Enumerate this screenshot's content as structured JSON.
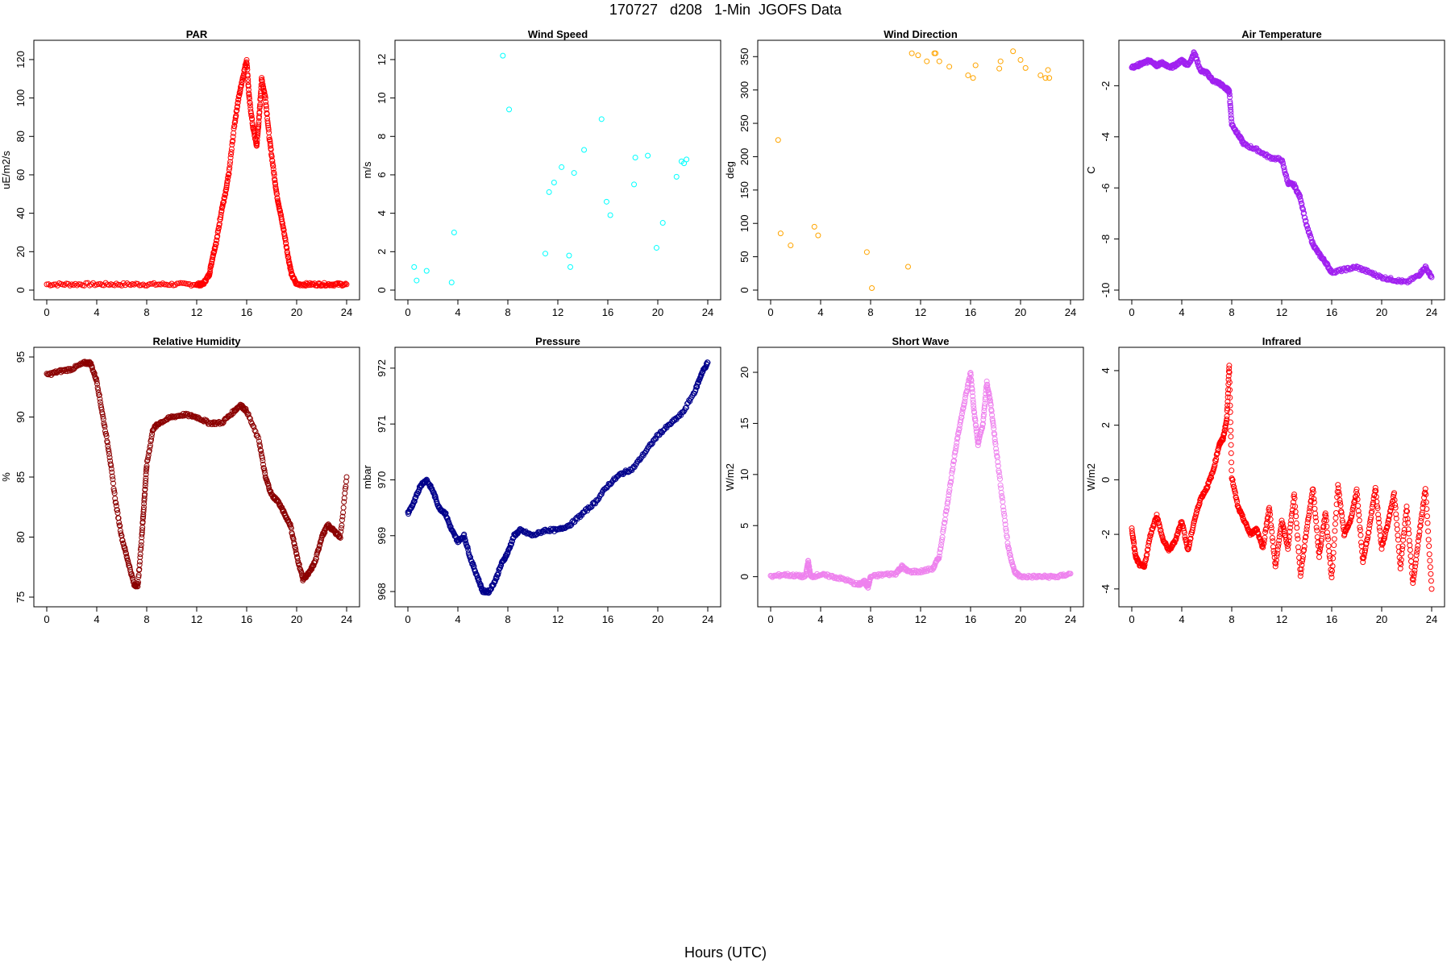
{
  "page": {
    "title": "170727   d208   1-Min  JGOFS Data",
    "xlabel": "Hours (UTC)"
  },
  "chart_data": [
    {
      "type": "scatter",
      "title": "PAR",
      "ylabel": "uE/m2/s",
      "xlim": [
        0,
        24
      ],
      "ylim": [
        0,
        125
      ],
      "xticks": [
        0,
        4,
        8,
        12,
        16,
        20,
        24
      ],
      "yticks": [
        0,
        20,
        40,
        60,
        80,
        100,
        120
      ],
      "ytick_rotation": "vertical",
      "color": "#FF0000",
      "marker": "hollow-circle",
      "series": [
        {
          "x": [
            0,
            2,
            4,
            6,
            8,
            10,
            12,
            12.5,
            13,
            13.3,
            13.6,
            14,
            14.3,
            14.6,
            15,
            15.3,
            15.6,
            16,
            16.2,
            16.5,
            16.8,
            17,
            17.2,
            17.5,
            17.8,
            18.1,
            18.4,
            18.7,
            19,
            19.3,
            19.6,
            20,
            21,
            22,
            23,
            24
          ],
          "y": [
            3,
            3,
            3,
            3,
            3,
            3,
            3,
            3,
            8,
            18,
            26,
            42,
            50,
            62,
            85,
            98,
            108,
            120,
            100,
            85,
            75,
            90,
            110,
            100,
            80,
            65,
            50,
            40,
            30,
            18,
            8,
            3,
            3,
            3,
            3,
            3
          ]
        }
      ]
    },
    {
      "type": "scatter",
      "title": "Wind Speed",
      "ylabel": "m/s",
      "xlim": [
        0,
        24
      ],
      "ylim": [
        0,
        12.5
      ],
      "xticks": [
        0,
        4,
        8,
        12,
        16,
        20,
        24
      ],
      "yticks": [
        0,
        2,
        4,
        6,
        8,
        10,
        12
      ],
      "ytick_rotation": "vertical",
      "color": "#00FFFF",
      "marker": "hollow-circle",
      "series": [
        {
          "x": [
            0.5,
            0.7,
            1.5,
            3.5,
            3.7,
            7.6,
            8.1,
            11.0,
            11.3,
            11.7,
            12.3,
            12.9,
            13.0,
            13.3,
            14.1,
            15.5,
            15.9,
            16.2,
            18.1,
            18.2,
            19.2,
            19.9,
            20.4,
            21.5,
            21.9,
            22.1,
            22.3
          ],
          "y": [
            1.2,
            0.5,
            1.0,
            0.4,
            3.0,
            12.2,
            9.4,
            1.9,
            5.1,
            5.6,
            6.4,
            1.8,
            1.2,
            6.1,
            7.3,
            8.9,
            4.6,
            3.9,
            5.5,
            6.9,
            7.0,
            2.2,
            3.5,
            5.9,
            6.7,
            6.6,
            6.8
          ]
        }
      ]
    },
    {
      "type": "scatter",
      "title": "Wind Direction",
      "ylabel": "deg",
      "xlim": [
        0,
        24
      ],
      "ylim": [
        0,
        360
      ],
      "xticks": [
        0,
        4,
        8,
        12,
        16,
        20,
        24
      ],
      "yticks": [
        0,
        50,
        100,
        150,
        200,
        250,
        300,
        350
      ],
      "ytick_rotation": "vertical",
      "color": "#FFA500",
      "marker": "hollow-circle",
      "series": [
        {
          "x": [
            0.6,
            0.8,
            1.6,
            3.5,
            3.8,
            7.7,
            8.1,
            11.0,
            11.3,
            11.8,
            12.5,
            13.1,
            13.2,
            13.5,
            14.3,
            15.8,
            16.2,
            16.4,
            18.3,
            18.4,
            19.4,
            20.0,
            20.4,
            21.6,
            22.0,
            22.2,
            22.3
          ],
          "y": [
            225,
            85,
            67,
            95,
            82,
            57,
            3,
            35,
            355,
            352,
            343,
            355,
            355,
            343,
            335,
            322,
            318,
            337,
            332,
            343,
            358,
            345,
            333,
            322,
            318,
            330,
            318
          ]
        }
      ]
    },
    {
      "type": "scatter",
      "title": "Air Temperature",
      "ylabel": "C",
      "xlim": [
        0,
        24
      ],
      "ylim": [
        -10,
        -0.6
      ],
      "xticks": [
        0,
        4,
        8,
        12,
        16,
        20,
        24
      ],
      "yticks": [
        -10,
        -8,
        -6,
        -4,
        -2
      ],
      "ytick_rotation": "vertical",
      "color": "#A020F0",
      "marker": "hollow-circle",
      "series": [
        {
          "x": [
            0,
            0.5,
            1,
            1.5,
            2,
            2.5,
            3,
            3.5,
            4,
            4.5,
            5,
            5.5,
            6,
            6.5,
            7,
            7.5,
            7.8,
            8,
            8.5,
            9,
            10,
            11,
            12,
            12.5,
            13,
            13.5,
            14,
            14.5,
            15,
            15.5,
            16,
            17,
            18,
            19,
            20,
            21,
            22,
            23,
            23.5,
            24
          ],
          "y": [
            -1.3,
            -1.2,
            -1.1,
            -1.0,
            -1.2,
            -1.1,
            -1.3,
            -1.2,
            -1.0,
            -1.2,
            -0.7,
            -1.4,
            -1.5,
            -1.8,
            -1.9,
            -2.1,
            -2.2,
            -3.5,
            -3.9,
            -4.3,
            -4.5,
            -4.8,
            -4.9,
            -5.8,
            -5.9,
            -6.4,
            -7.5,
            -8.2,
            -8.6,
            -8.9,
            -9.3,
            -9.2,
            -9.1,
            -9.3,
            -9.5,
            -9.6,
            -9.7,
            -9.4,
            -9.1,
            -9.5
          ]
        }
      ]
    },
    {
      "type": "scatter",
      "title": "Relative Humidity",
      "ylabel": "%",
      "xlim": [
        0,
        24
      ],
      "ylim": [
        75,
        95
      ],
      "xticks": [
        0,
        4,
        8,
        12,
        16,
        20,
        24
      ],
      "yticks": [
        75,
        80,
        85,
        90,
        95
      ],
      "ytick_rotation": "vertical",
      "color": "#8B0000",
      "marker": "hollow-circle",
      "series": [
        {
          "x": [
            0,
            1,
            2,
            3,
            3.5,
            4,
            4.5,
            5,
            5.5,
            6,
            6.5,
            7,
            7.3,
            7.6,
            7.8,
            8,
            8.5,
            9,
            10,
            11,
            12,
            13,
            14,
            15,
            15.5,
            16,
            17,
            17.5,
            18,
            18.5,
            19,
            19.5,
            20,
            20.5,
            21,
            21.5,
            22,
            22.5,
            23,
            23.5,
            24
          ],
          "y": [
            93.5,
            93.8,
            94.0,
            94.5,
            94.5,
            93.0,
            90.0,
            87.0,
            83.0,
            80.0,
            78.0,
            76.0,
            76.0,
            80.0,
            83.0,
            86.0,
            89.0,
            89.5,
            90.0,
            90.2,
            90.0,
            89.5,
            89.5,
            90.5,
            91.0,
            90.5,
            88.0,
            85.0,
            83.5,
            83.0,
            82.0,
            81.0,
            78.5,
            76.5,
            77.0,
            78.0,
            80.0,
            81.0,
            80.5,
            80.0,
            85.0
          ]
        }
      ]
    },
    {
      "type": "scatter",
      "title": "Pressure",
      "ylabel": "mbar",
      "xlim": [
        0,
        24
      ],
      "ylim": [
        967.9,
        972.2
      ],
      "xticks": [
        0,
        4,
        8,
        12,
        16,
        20,
        24
      ],
      "yticks": [
        968,
        969,
        970,
        971,
        972
      ],
      "ytick_rotation": "vertical",
      "color": "#00008B",
      "marker": "hollow-circle",
      "series": [
        {
          "x": [
            0,
            0.5,
            1,
            1.5,
            2,
            2.5,
            3,
            3.5,
            4,
            4.5,
            5,
            5.5,
            6,
            6.5,
            7,
            7.5,
            8,
            8.5,
            9,
            10,
            11,
            12,
            13,
            14,
            15,
            16,
            17,
            18,
            19,
            20,
            21,
            22,
            23,
            23.5,
            24
          ],
          "y": [
            969.4,
            969.6,
            969.9,
            970.0,
            969.8,
            969.5,
            969.4,
            969.1,
            968.9,
            969.0,
            968.6,
            968.3,
            968.0,
            968.0,
            968.2,
            968.5,
            968.7,
            969.0,
            969.1,
            969.0,
            969.1,
            969.1,
            969.2,
            969.4,
            969.6,
            969.9,
            970.1,
            970.2,
            970.5,
            970.8,
            971.0,
            971.2,
            971.6,
            971.9,
            972.1
          ]
        }
      ]
    },
    {
      "type": "scatter",
      "title": "Short Wave",
      "ylabel": "W/m2",
      "xlim": [
        0,
        24
      ],
      "ylim": [
        -2,
        21.5
      ],
      "xticks": [
        0,
        4,
        8,
        12,
        16,
        20,
        24
      ],
      "yticks": [
        0,
        5,
        10,
        15,
        20
      ],
      "ytick_rotation": "vertical",
      "color": "#EE82EE",
      "marker": "hollow-circle",
      "series": [
        {
          "x": [
            0,
            1,
            2,
            2.8,
            3,
            3.2,
            4,
            5,
            6,
            7,
            7.5,
            7.8,
            8,
            9,
            10,
            10.5,
            11,
            12,
            13,
            13.5,
            14,
            14.5,
            15,
            15.5,
            16,
            16.3,
            16.6,
            17,
            17.3,
            17.6,
            18,
            18.5,
            19,
            19.5,
            20,
            21,
            22,
            23,
            24
          ],
          "y": [
            0,
            0.2,
            0.1,
            0,
            1.5,
            0,
            0.2,
            0,
            -0.3,
            -0.8,
            -0.5,
            -1.0,
            0,
            0.2,
            0.3,
            1.0,
            0.5,
            0.5,
            0.8,
            2.0,
            6.0,
            10.0,
            14.0,
            17.0,
            20.0,
            16.0,
            13.0,
            15.0,
            19.0,
            17.0,
            13.0,
            8.0,
            3.0,
            0.5,
            0,
            0,
            0,
            0,
            0.3
          ]
        }
      ]
    },
    {
      "type": "scatter",
      "title": "Infrared",
      "ylabel": "W/m2",
      "xlim": [
        0,
        24
      ],
      "ylim": [
        -4.3,
        4.5
      ],
      "xticks": [
        0,
        4,
        8,
        12,
        16,
        20,
        24
      ],
      "yticks": [
        -4,
        -2,
        0,
        2,
        4
      ],
      "ytick_rotation": "vertical",
      "color": "#FF0000",
      "marker": "hollow-circle",
      "series": [
        {
          "x": [
            0,
            0.3,
            0.6,
            1,
            1.5,
            2,
            2.5,
            3,
            3.5,
            4,
            4.5,
            5,
            5.5,
            6,
            6.5,
            7,
            7.3,
            7.6,
            7.8,
            8,
            8.5,
            9,
            9.5,
            10,
            10.5,
            11,
            11.5,
            12,
            12.5,
            13,
            13.5,
            14,
            14.5,
            15,
            15.5,
            16,
            16.5,
            17,
            17.5,
            18,
            18.5,
            19,
            19.5,
            20,
            20.5,
            21,
            21.5,
            22,
            22.5,
            23,
            23.5,
            24
          ],
          "y": [
            -1.8,
            -2.8,
            -3.1,
            -3.2,
            -2.0,
            -1.3,
            -2.2,
            -2.6,
            -2.2,
            -1.5,
            -2.6,
            -1.5,
            -0.7,
            -0.3,
            0.3,
            1.3,
            1.5,
            2.2,
            4.2,
            0.1,
            -1.0,
            -1.5,
            -2.0,
            -1.8,
            -2.5,
            -1.0,
            -3.2,
            -1.5,
            -2.5,
            -0.5,
            -3.5,
            -1.8,
            -0.3,
            -2.8,
            -1.2,
            -3.6,
            -0.2,
            -2.0,
            -1.5,
            -0.4,
            -3.0,
            -1.8,
            -0.3,
            -2.5,
            -1.6,
            -0.5,
            -3.2,
            -1.0,
            -3.8,
            -2.0,
            -0.3,
            -4.0
          ]
        }
      ]
    }
  ]
}
